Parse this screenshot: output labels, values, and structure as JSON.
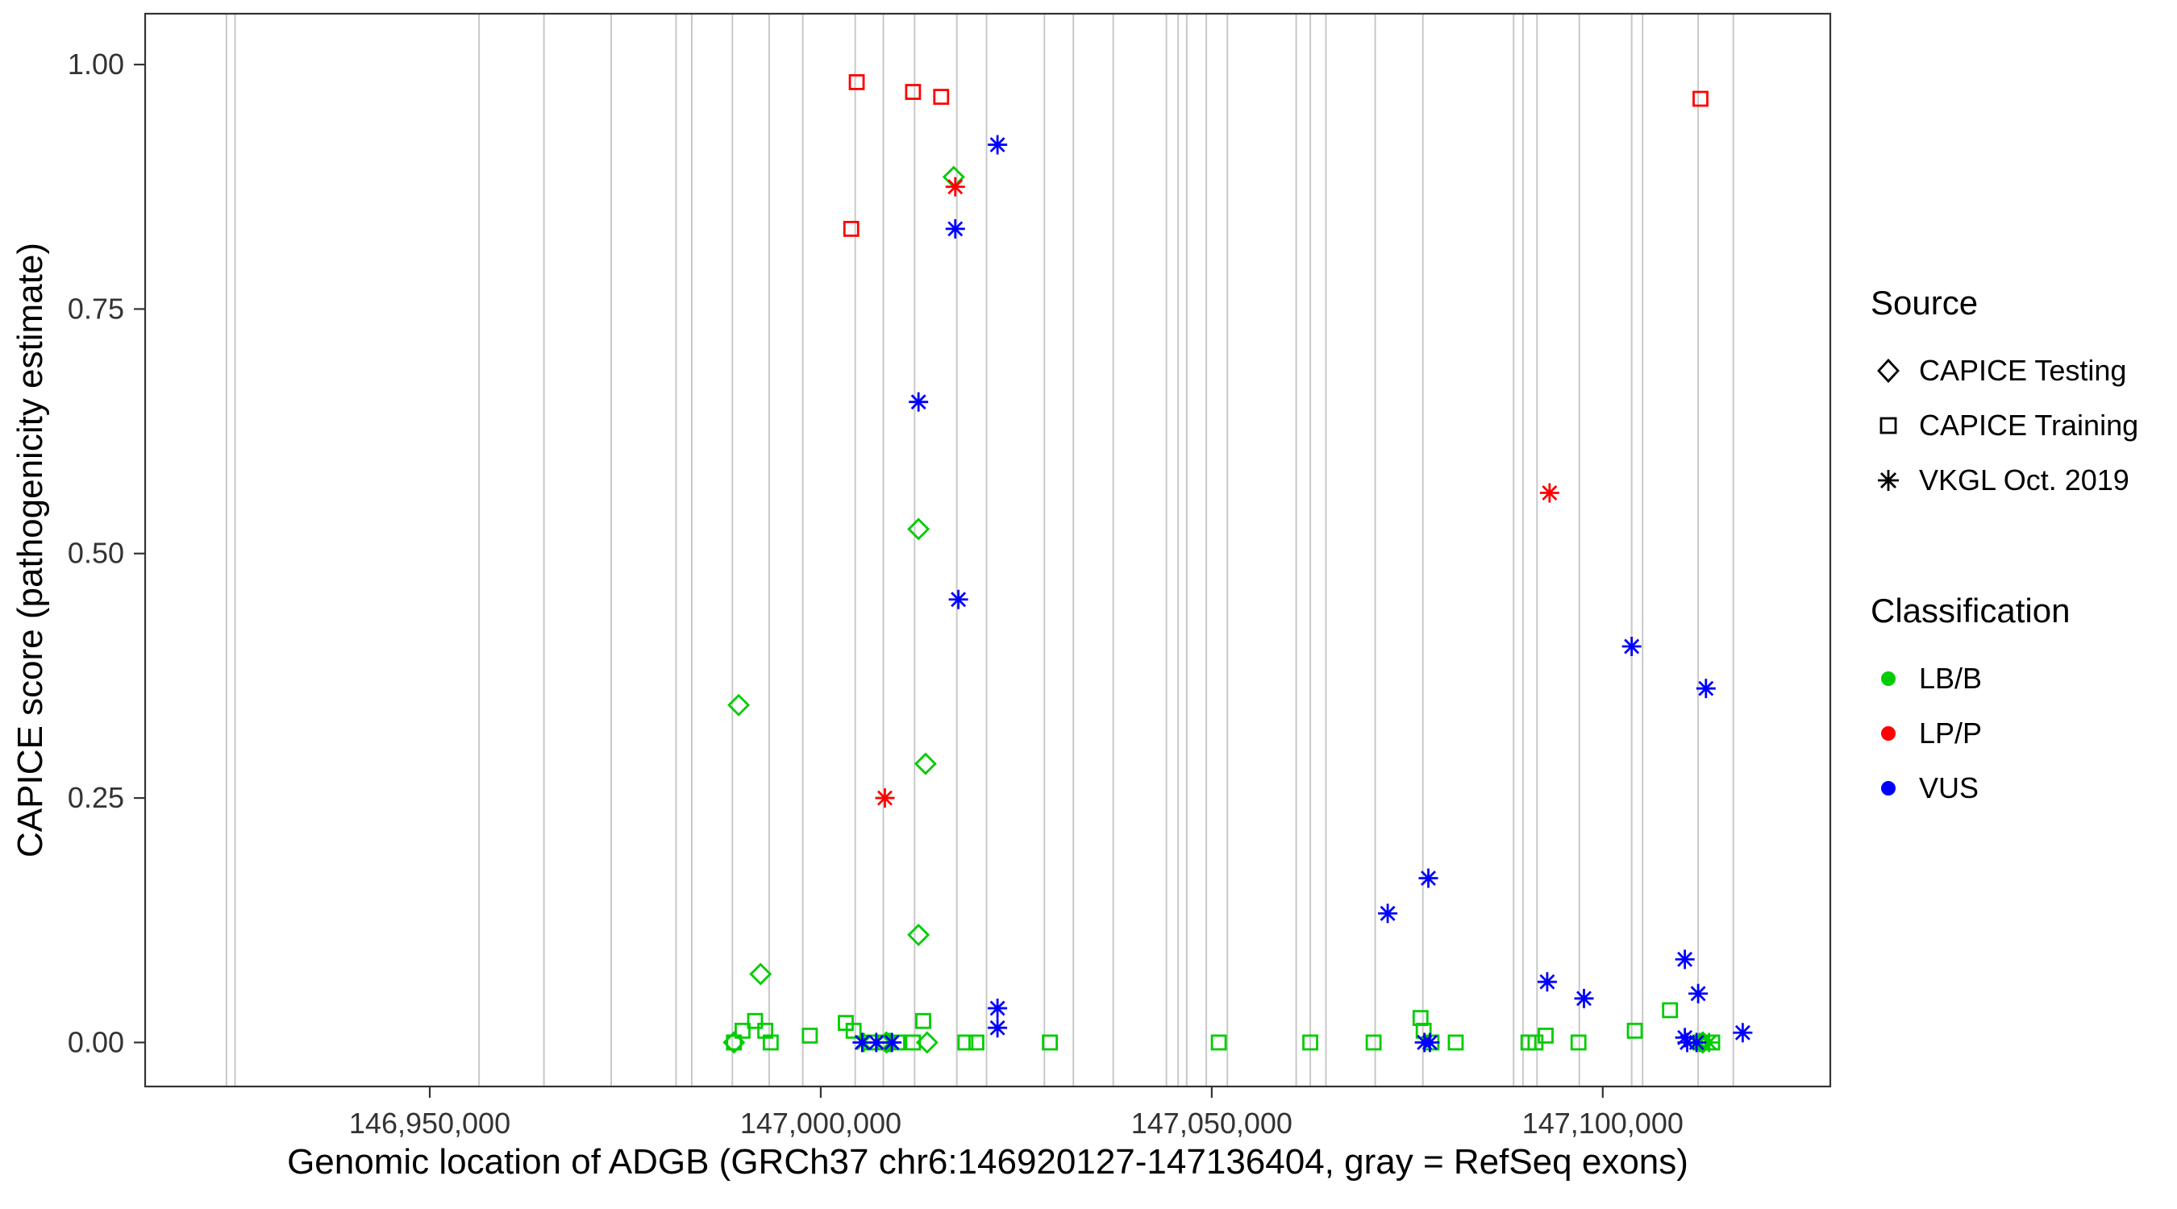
{
  "figure": {
    "xlabel": "Genomic location of ADGB (GRCh37 chr6:146920127-147136404, gray = RefSeq exons)",
    "ylabel": "CAPICE score (pathogenicity estimate)"
  },
  "legend": {
    "source": {
      "title": "Source",
      "items": [
        {
          "label": "CAPICE Testing",
          "shape": "diamond"
        },
        {
          "label": "CAPICE Training",
          "shape": "square"
        },
        {
          "label": "VKGL Oct. 2019",
          "shape": "asterisk"
        }
      ]
    },
    "classification": {
      "title": "Classification",
      "items": [
        {
          "label": "LB/B",
          "color": "#00CC00"
        },
        {
          "label": "LP/P",
          "color": "#FF0000"
        },
        {
          "label": "VUS",
          "color": "#0000FF"
        }
      ]
    }
  },
  "chart_data": {
    "type": "scatter",
    "title": "",
    "xlabel": "Genomic location of ADGB (GRCh37 chr6:146920127-147136404, gray = RefSeq exons)",
    "ylabel": "CAPICE score (pathogenicity estimate)",
    "x_range": [
      146913600,
      147129100
    ],
    "y_range": [
      -0.045,
      1.052
    ],
    "x_ticks": [
      {
        "value": 146950000,
        "label": "146,950,000"
      },
      {
        "value": 147000000,
        "label": "147,000,000"
      },
      {
        "value": 147050000,
        "label": "147,050,000"
      },
      {
        "value": 147100000,
        "label": "147,100,000"
      }
    ],
    "y_ticks": [
      {
        "value": 0.0,
        "label": "0.00"
      },
      {
        "value": 0.25,
        "label": "0.25"
      },
      {
        "value": 0.5,
        "label": "0.50"
      },
      {
        "value": 0.75,
        "label": "0.75"
      },
      {
        "value": 1.0,
        "label": "1.00"
      }
    ],
    "grid": false,
    "legend_position": "right",
    "exon_line_color": "#C8C8C8",
    "exon_lines": [
      146924000,
      146925100,
      146956300,
      146964600,
      146973200,
      146981500,
      146983500,
      146988700,
      146993400,
      146997700,
      147004400,
      147008000,
      147012000,
      147017400,
      147021200,
      147028600,
      147032300,
      147037400,
      147044200,
      147045700,
      147046800,
      147049300,
      147052000,
      147060800,
      147062600,
      147064600,
      147070900,
      147077000,
      147088600,
      147089800,
      147091600,
      147097000,
      147103700,
      147105100,
      147112200,
      147116700
    ],
    "series": [
      {
        "name": "LB/B CAPICE Testing",
        "classification": "LB/B",
        "source": "CAPICE Testing",
        "shape": "diamond",
        "color": "#00CC00",
        "points": [
          [
            146989500,
            0.345
          ],
          [
            146992300,
            0.07
          ],
          [
            147012500,
            0.525
          ],
          [
            147013400,
            0.285
          ],
          [
            147012500,
            0.11
          ],
          [
            147017000,
            0.885
          ],
          [
            146988900,
            0.0
          ],
          [
            147008400,
            0.0
          ],
          [
            147013600,
            0.0
          ],
          [
            147112800,
            0.0
          ]
        ]
      },
      {
        "name": "LB/B CAPICE Training",
        "classification": "LB/B",
        "source": "CAPICE Training",
        "shape": "square",
        "color": "#00CC00",
        "points": [
          [
            146988900,
            0.0
          ],
          [
            146990000,
            0.012
          ],
          [
            146991600,
            0.022
          ],
          [
            146992900,
            0.012
          ],
          [
            146993600,
            0.0
          ],
          [
            146998600,
            0.007
          ],
          [
            147003200,
            0.02
          ],
          [
            147004200,
            0.012
          ],
          [
            147006200,
            0.0
          ],
          [
            147008200,
            0.0
          ],
          [
            147009800,
            0.0
          ],
          [
            147011800,
            0.0
          ],
          [
            147013100,
            0.022
          ],
          [
            147018500,
            0.0
          ],
          [
            147019900,
            0.0
          ],
          [
            147029300,
            0.0
          ],
          [
            147050900,
            0.0
          ],
          [
            147062600,
            0.0
          ],
          [
            147070700,
            0.0
          ],
          [
            147076700,
            0.025
          ],
          [
            147077100,
            0.012
          ],
          [
            147078100,
            0.0
          ],
          [
            147081200,
            0.0
          ],
          [
            147090500,
            0.0
          ],
          [
            147091400,
            0.0
          ],
          [
            147092700,
            0.007
          ],
          [
            147096900,
            0.0
          ],
          [
            147104100,
            0.012
          ],
          [
            147108600,
            0.033
          ],
          [
            147112500,
            0.0
          ],
          [
            147114000,
            0.0
          ]
        ]
      },
      {
        "name": "LB/B VKGL Oct. 2019",
        "classification": "LB/B",
        "source": "VKGL Oct. 2019",
        "shape": "asterisk",
        "color": "#00CC00",
        "points": [
          [
            147005500,
            0.0
          ],
          [
            147008800,
            0.0
          ],
          [
            147112400,
            0.0
          ],
          [
            147113600,
            0.0
          ]
        ]
      },
      {
        "name": "LP/P CAPICE Training",
        "classification": "LP/P",
        "source": "CAPICE Training",
        "shape": "square",
        "color": "#FF0000",
        "points": [
          [
            147004600,
            0.982
          ],
          [
            147011800,
            0.972
          ],
          [
            147015400,
            0.967
          ],
          [
            147003900,
            0.832
          ],
          [
            147112500,
            0.965
          ]
        ]
      },
      {
        "name": "LP/P VKGL Oct. 2019",
        "classification": "LP/P",
        "source": "VKGL Oct. 2019",
        "shape": "asterisk",
        "color": "#FF0000",
        "points": [
          [
            147017200,
            0.875
          ],
          [
            147008200,
            0.25
          ],
          [
            147093200,
            0.562
          ]
        ]
      },
      {
        "name": "VUS VKGL Oct. 2019",
        "classification": "VUS",
        "source": "VKGL Oct. 2019",
        "shape": "asterisk",
        "color": "#0000FF",
        "points": [
          [
            147022600,
            0.918
          ],
          [
            147017200,
            0.832
          ],
          [
            147012500,
            0.655
          ],
          [
            147017600,
            0.453
          ],
          [
            147103700,
            0.405
          ],
          [
            147113200,
            0.362
          ],
          [
            147077700,
            0.168
          ],
          [
            147072500,
            0.132
          ],
          [
            147110500,
            0.085
          ],
          [
            147092900,
            0.062
          ],
          [
            147097600,
            0.045
          ],
          [
            147112200,
            0.05
          ],
          [
            147022600,
            0.035
          ],
          [
            147022600,
            0.015
          ],
          [
            147117900,
            0.01
          ],
          [
            147110500,
            0.005
          ],
          [
            147005300,
            0.0
          ],
          [
            147007100,
            0.0
          ],
          [
            147009100,
            0.0
          ],
          [
            147077200,
            0.0
          ],
          [
            147077900,
            0.0
          ],
          [
            147110800,
            0.0
          ],
          [
            147112000,
            0.0
          ]
        ]
      }
    ]
  }
}
